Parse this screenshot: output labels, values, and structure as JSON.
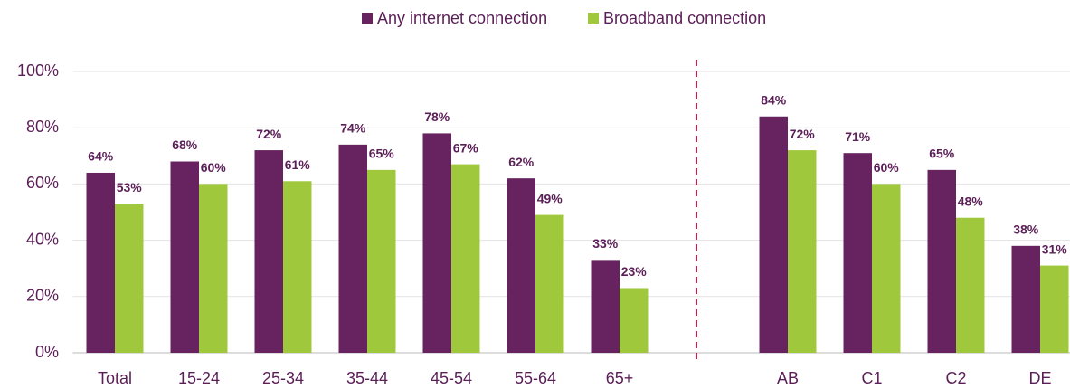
{
  "chart_data": {
    "type": "bar",
    "categories": [
      "Total",
      "15-24",
      "25-34",
      "35-44",
      "45-54",
      "55-64",
      "65+",
      null,
      "AB",
      "C1",
      "C2",
      "DE"
    ],
    "series": [
      {
        "name": "Any internet connection",
        "color": "#662360",
        "values": [
          64,
          68,
          72,
          74,
          78,
          62,
          33,
          null,
          84,
          71,
          65,
          38
        ],
        "value_labels": [
          "64%",
          "68%",
          "72%",
          "74%",
          "78%",
          "62%",
          "33%",
          null,
          "84%",
          "71%",
          "65%",
          "38%"
        ]
      },
      {
        "name": "Broadband connection",
        "color": "#a0c83c",
        "values": [
          53,
          60,
          61,
          65,
          67,
          49,
          23,
          null,
          72,
          60,
          48,
          31
        ],
        "value_labels": [
          "53%",
          "60%",
          "61%",
          "65%",
          "67%",
          "49%",
          "23%",
          null,
          "72%",
          "60%",
          "48%",
          "31%"
        ]
      }
    ],
    "ylim": [
      0,
      100
    ],
    "yticks": [
      {
        "value": 0,
        "label": "0%"
      },
      {
        "value": 20,
        "label": "20%"
      },
      {
        "value": 40,
        "label": "40%"
      },
      {
        "value": 60,
        "label": "60%"
      },
      {
        "value": 80,
        "label": "80%"
      },
      {
        "value": 100,
        "label": "100%"
      }
    ],
    "grid": true
  }
}
